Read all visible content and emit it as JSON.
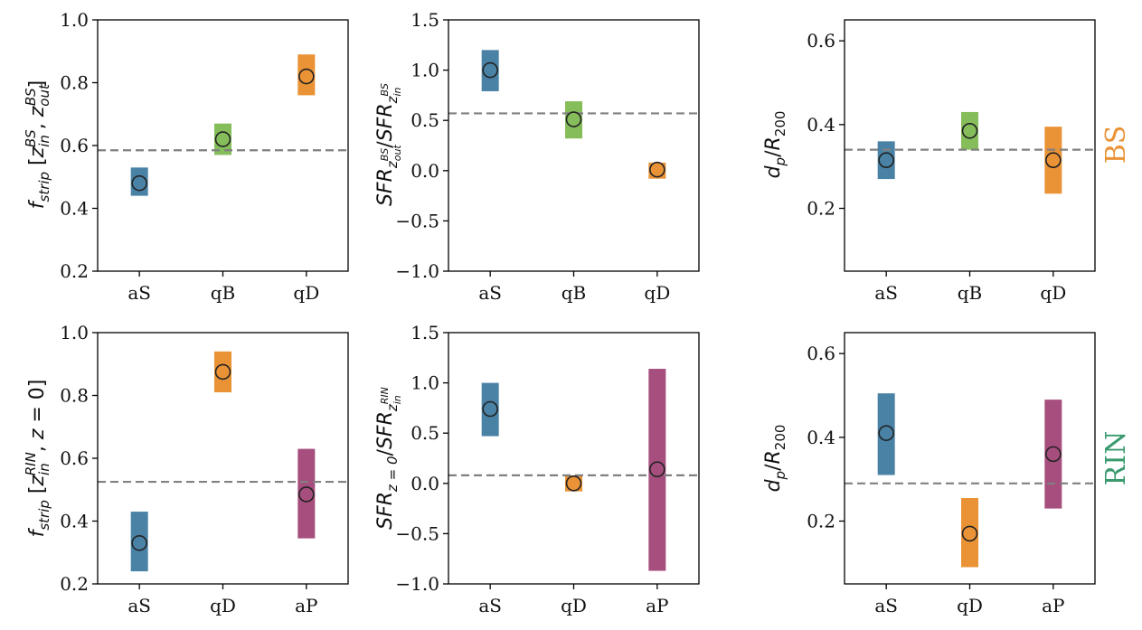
{
  "colors": {
    "aS": "#4a82a6",
    "qB": "#86bd5b",
    "qD": "#ea9336",
    "aP": "#a64e7e",
    "dash": "#808080",
    "BS": "#ea9336",
    "RIN": "#3a9a6e"
  },
  "row_labels": {
    "top": "BS",
    "bottom": "RIN"
  },
  "chart_data": [
    {
      "type": "errorbar",
      "row": 0,
      "col": 0,
      "ylabel": "f_strip [z_in^BS, z_out^BS]",
      "ylim": [
        0.2,
        1.0
      ],
      "yticks": [
        "0.2",
        "0.4",
        "0.6",
        "0.8",
        "1.0"
      ],
      "categories": [
        "aS",
        "qB",
        "qD"
      ],
      "values": [
        0.48,
        0.62,
        0.82
      ],
      "lower": [
        0.44,
        0.57,
        0.76
      ],
      "upper": [
        0.53,
        0.67,
        0.89
      ],
      "reference_line": 0.585
    },
    {
      "type": "errorbar",
      "row": 0,
      "col": 1,
      "ylabel": "SFR_z_out^BS / SFR_z_in^BS",
      "ylim": [
        -1.0,
        1.5
      ],
      "yticks": [
        "−1.0",
        "−0.5",
        "0.0",
        "0.5",
        "1.0",
        "1.5"
      ],
      "categories": [
        "aS",
        "qB",
        "qD"
      ],
      "values": [
        1.0,
        0.51,
        0.01
      ],
      "lower": [
        0.79,
        0.32,
        -0.08
      ],
      "upper": [
        1.2,
        0.69,
        0.08
      ],
      "reference_line": 0.57
    },
    {
      "type": "errorbar",
      "row": 0,
      "col": 2,
      "ylabel": "d_p / R_200",
      "ylim": [
        0.05,
        0.65
      ],
      "yticks": [
        "0.2",
        "0.4",
        "0.6"
      ],
      "categories": [
        "aS",
        "qB",
        "qD"
      ],
      "values": [
        0.315,
        0.385,
        0.315
      ],
      "lower": [
        0.27,
        0.34,
        0.235
      ],
      "upper": [
        0.36,
        0.43,
        0.395
      ],
      "reference_line": 0.34
    },
    {
      "type": "errorbar",
      "row": 1,
      "col": 0,
      "ylabel": "f_strip [z_in^RIN, z = 0]",
      "ylim": [
        0.2,
        1.0
      ],
      "yticks": [
        "0.2",
        "0.4",
        "0.6",
        "0.8",
        "1.0"
      ],
      "categories": [
        "aS",
        "qD",
        "aP"
      ],
      "values": [
        0.33,
        0.875,
        0.485
      ],
      "lower": [
        0.24,
        0.81,
        0.345
      ],
      "upper": [
        0.43,
        0.94,
        0.63
      ],
      "reference_line": 0.525
    },
    {
      "type": "errorbar",
      "row": 1,
      "col": 1,
      "ylabel": "SFR_z=0 / SFR_z_in^RIN",
      "ylim": [
        -1.0,
        1.5
      ],
      "yticks": [
        "−1.0",
        "−0.5",
        "0.0",
        "0.5",
        "1.0",
        "1.5"
      ],
      "categories": [
        "aS",
        "qD",
        "aP"
      ],
      "values": [
        0.74,
        0.0,
        0.14
      ],
      "lower": [
        0.47,
        -0.08,
        -0.87
      ],
      "upper": [
        1.0,
        0.08,
        1.14
      ],
      "reference_line": 0.08
    },
    {
      "type": "errorbar",
      "row": 1,
      "col": 2,
      "ylabel": "d_p / R_200",
      "ylim": [
        0.05,
        0.65
      ],
      "yticks": [
        "0.2",
        "0.4",
        "0.6"
      ],
      "categories": [
        "aS",
        "qD",
        "aP"
      ],
      "values": [
        0.41,
        0.17,
        0.36
      ],
      "lower": [
        0.31,
        0.09,
        0.23
      ],
      "upper": [
        0.505,
        0.255,
        0.49
      ],
      "reference_line": 0.29
    }
  ]
}
